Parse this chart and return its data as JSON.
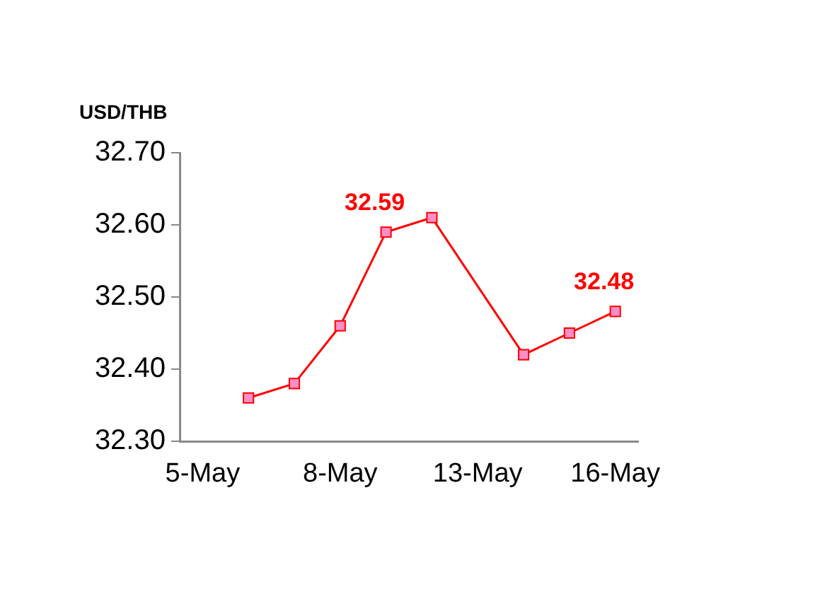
{
  "chart_data": {
    "type": "line",
    "ylabel": "USD/THB",
    "categories": [
      "5-May",
      null,
      null,
      "8-May",
      null,
      null,
      "13-May",
      null,
      null,
      "16-May"
    ],
    "series": [
      {
        "color": "#ff0000",
        "values": [
          null,
          32.36,
          32.38,
          32.46,
          32.59,
          32.61,
          null,
          32.42,
          32.45,
          32.48
        ],
        "value_labels": [
          null,
          null,
          null,
          null,
          "32.59",
          null,
          null,
          null,
          null,
          "32.48"
        ]
      }
    ],
    "ylim": [
      32.3,
      32.7
    ],
    "yticks": [
      {
        "value": 32.3,
        "label": "32.30"
      },
      {
        "value": 32.4,
        "label": "32.40"
      },
      {
        "value": 32.5,
        "label": "32.50"
      },
      {
        "value": 32.6,
        "label": "32.60"
      },
      {
        "value": 32.7,
        "label": "32.70"
      }
    ],
    "grid": false,
    "legend": false,
    "marker": "square",
    "line_style": "solid"
  }
}
